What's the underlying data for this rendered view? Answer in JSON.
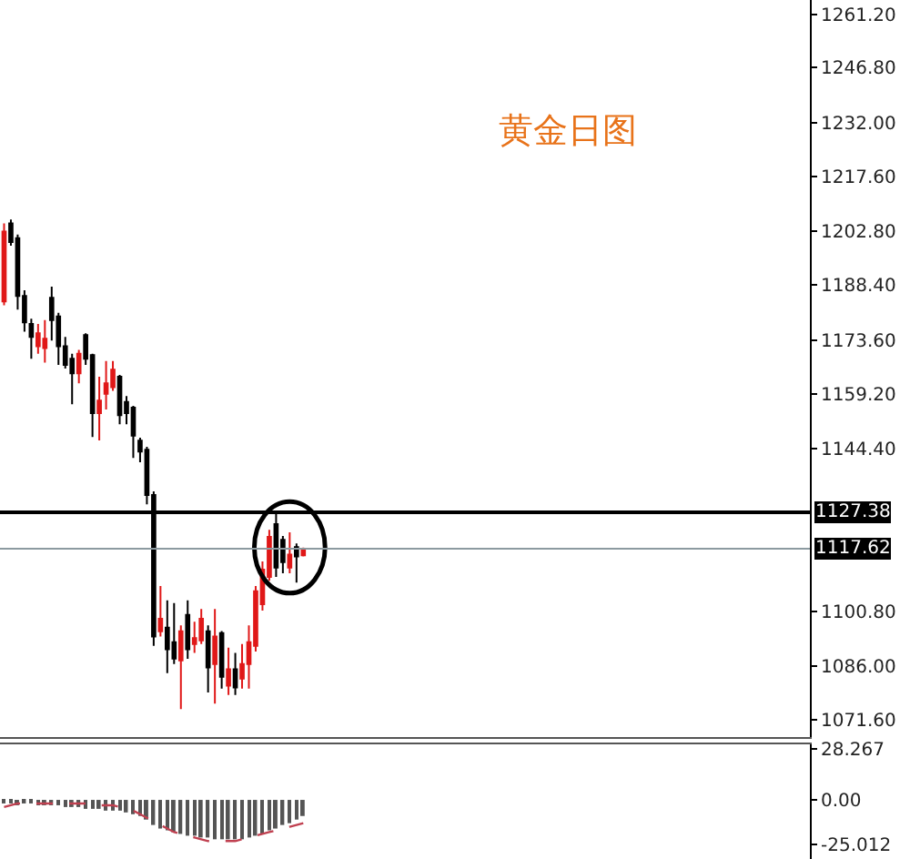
{
  "chart_data": [
    {
      "type": "candlestick",
      "title": "黄金日图",
      "categories": [
        null,
        null,
        null,
        null,
        null,
        null,
        null,
        null,
        null,
        null,
        null,
        null,
        null,
        null,
        null,
        null,
        null,
        null,
        null,
        null,
        null,
        null,
        null,
        null,
        null,
        null,
        null,
        null,
        null,
        null,
        null,
        null,
        null,
        null,
        null,
        null,
        null,
        null,
        null,
        null,
        null,
        null,
        null,
        null,
        null,
        null,
        null,
        null,
        null,
        null,
        null,
        null,
        null,
        null,
        null,
        null,
        null,
        null,
        null,
        null,
        null,
        null,
        null,
        null,
        null,
        null,
        null,
        null,
        null,
        null,
        null,
        null,
        null,
        null,
        null,
        null,
        null,
        null,
        null,
        null,
        null,
        null,
        null,
        null,
        null,
        null,
        null,
        null,
        null,
        null,
        null,
        null,
        null,
        null,
        null,
        null,
        null,
        null,
        null,
        null,
        null,
        null,
        null,
        null,
        null,
        null,
        null,
        null,
        null,
        null,
        null,
        null,
        null,
        null,
        null,
        null,
        null,
        null,
        null
      ],
      "ohlc": [
        [
          1184,
          1205,
          1183,
          1202.8
        ],
        [
          1205,
          1206,
          1199,
          1200
        ],
        [
          1201,
          1202,
          1181.8,
          1185.5
        ],
        [
          1185.5,
          1187,
          1175.9,
          1178.4
        ],
        [
          1178,
          1179.4,
          1168.6,
          1174.5
        ],
        [
          1172,
          1178,
          1170,
          1175.5
        ],
        [
          1171.5,
          1179,
          1167.6,
          1174
        ],
        [
          1185,
          1188,
          1173.5,
          1179
        ],
        [
          1180,
          1181,
          1167,
          1172
        ],
        [
          1172,
          1174.5,
          1166,
          1167
        ],
        [
          1168.6,
          1170,
          1156.4,
          1164.7
        ],
        [
          1164.7,
          1171,
          1162,
          1170
        ],
        [
          1175,
          1175.5,
          1167,
          1168.6
        ],
        [
          1169.6,
          1170,
          1147.6,
          1154
        ],
        [
          1154,
          1163.8,
          1146.7,
          1157.4
        ],
        [
          1159.2,
          1168,
          1155,
          1162
        ],
        [
          1161,
          1168,
          1160,
          1165.7
        ],
        [
          1163.8,
          1164.3,
          1151,
          1153.5
        ],
        [
          1157,
          1158.6,
          1151,
          1154
        ],
        [
          1155.5,
          1156,
          1142,
          1148
        ],
        [
          1146.6,
          1147.4,
          1140.8,
          1143.7
        ],
        [
          1144.2,
          1145,
          1129.5,
          1132
        ],
        [
          1132,
          1133,
          1091.5,
          1094
        ],
        [
          1095.4,
          1107.6,
          1094,
          1098.8
        ],
        [
          1096.4,
          1103.7,
          1084.2,
          1090.6
        ],
        [
          1092.5,
          1103,
          1086.6,
          1088.1
        ],
        [
          1087.6,
          1097,
          1074.5,
          1095.4
        ],
        [
          1099.8,
          1103.7,
          1088,
          1090.6
        ],
        [
          1092,
          1098,
          1089.6,
          1093.6
        ],
        [
          1093,
          1101.4,
          1092,
          1098.8
        ],
        [
          1095.4,
          1097,
          1079,
          1085.7
        ],
        [
          1086.6,
          1101.4,
          1076,
          1094
        ],
        [
          1094.9,
          1095.5,
          1080,
          1083.2
        ],
        [
          1080.8,
          1091,
          1078.3,
          1085.2
        ],
        [
          1085.2,
          1089.6,
          1078.3,
          1080.3
        ],
        [
          1082.7,
          1092,
          1080,
          1086.6
        ],
        [
          1086.6,
          1097,
          1080,
          1092.5
        ],
        [
          1091.5,
          1107.6,
          1090,
          1106.2
        ],
        [
          1102.7,
          1114.2,
          1101,
          1112
        ],
        [
          1110,
          1122.7,
          1109,
          1120.8
        ],
        [
          1124.2,
          1127.4,
          1110,
          1112.5
        ],
        [
          1120,
          1121,
          1111,
          1114
        ],
        [
          1112.5,
          1122,
          1111,
          1116
        ],
        [
          1118,
          1119,
          1108.5,
          1115.5
        ],
        [
          1115.8,
          1117.9,
          1115.5,
          1117.62
        ],
        null,
        null,
        null,
        null,
        null,
        null,
        null,
        null,
        null,
        null,
        null,
        null,
        null,
        null,
        null,
        null,
        null,
        null,
        null,
        null,
        null,
        null,
        null,
        null,
        null,
        null,
        null,
        null,
        null,
        null,
        null,
        null,
        null,
        null,
        null,
        null,
        null,
        null,
        null,
        null,
        null,
        null,
        null,
        null,
        null,
        null,
        null,
        null,
        null,
        null,
        null,
        null,
        null,
        null,
        null,
        null,
        null,
        null,
        null,
        null,
        null,
        null,
        null,
        null,
        null,
        null,
        null,
        null,
        null,
        null,
        null,
        null,
        null,
        null
      ],
      "colors": [
        "#e01818",
        "#000000",
        "#000000",
        "#000000",
        "#000000",
        "#e01818",
        "#e01818",
        "#000000",
        "#000000",
        "#000000",
        "#000000",
        "#e01818",
        "#000000",
        "#000000",
        "#e01818",
        "#e01818",
        "#e01818",
        "#000000",
        "#000000",
        "#000000",
        "#000000",
        "#000000",
        "#000000",
        "#e01818",
        "#000000",
        "#000000",
        "#e01818",
        "#000000",
        "#e01818",
        "#e01818",
        "#000000",
        "#e01818",
        "#000000",
        "#e01818",
        "#000000",
        "#e01818",
        "#e01818",
        "#e01818",
        "#e01818",
        "#e01818",
        "#000000",
        "#000000",
        "#e01818",
        "#000000",
        "#e01818",
        null,
        null,
        null,
        null,
        null,
        null,
        null,
        null,
        null,
        null,
        null,
        null,
        null,
        null,
        null,
        null,
        null,
        null,
        null,
        null,
        null,
        null,
        null,
        null,
        null,
        null,
        null,
        null,
        null,
        null,
        null,
        null,
        null,
        null,
        null,
        null,
        null,
        null,
        null,
        null,
        null,
        null,
        null,
        null,
        null,
        null,
        null,
        null,
        null,
        null,
        null,
        null,
        null,
        null,
        null,
        null,
        null,
        null,
        null,
        null,
        null,
        null,
        null,
        null,
        null,
        null,
        null,
        null,
        null,
        null,
        null,
        null,
        null,
        null
      ],
      "ylim": [
        1067,
        1265
      ],
      "yticks": [
        {
          "value": 1261.2,
          "label": "1261.20"
        },
        {
          "value": 1246.8,
          "label": "1246.80"
        },
        {
          "value": 1232,
          "label": "1232.00"
        },
        {
          "value": 1217.6,
          "label": "1217.60"
        },
        {
          "value": 1202.8,
          "label": "1202.80"
        },
        {
          "value": 1188.4,
          "label": "1188.40"
        },
        {
          "value": 1173.6,
          "label": "1173.60"
        },
        {
          "value": 1159.2,
          "label": "1159.20"
        },
        {
          "value": 1144.4,
          "label": "1144.40"
        },
        {
          "value": 1100.8,
          "label": "1100.80"
        },
        {
          "value": 1086,
          "label": "1086.00"
        },
        {
          "value": 1071.6,
          "label": "1071.60"
        }
      ],
      "ref_lines": [
        {
          "axis": "y",
          "value": 1127.38,
          "label": "1127.38",
          "color": "#000000"
        },
        {
          "axis": "y",
          "value": 1117.62,
          "label": "1117.62",
          "color": "#8c9aa0"
        }
      ],
      "tick_labels": "y"
    },
    {
      "type": "bar",
      "categories": [
        null,
        null,
        null,
        null,
        null,
        null,
        null,
        null,
        null,
        null,
        null,
        null,
        null,
        null,
        null,
        null,
        null,
        null,
        null,
        null,
        null,
        null,
        null,
        null,
        null,
        null,
        null,
        null,
        null,
        null,
        null,
        null,
        null,
        null,
        null,
        null,
        null,
        null,
        null,
        null,
        null,
        null,
        null,
        null,
        null,
        null,
        null,
        null,
        null,
        null,
        null,
        null,
        null,
        null,
        null,
        null,
        null,
        null,
        null,
        null,
        null,
        null,
        null,
        null,
        null,
        null,
        null,
        null,
        null,
        null,
        null,
        null,
        null,
        null,
        null,
        null,
        null,
        null,
        null,
        null,
        null,
        null,
        null,
        null,
        null,
        null,
        null,
        null,
        null,
        null,
        null,
        null,
        null,
        null,
        null,
        null,
        null,
        null,
        null,
        null,
        null,
        null,
        null,
        null,
        null,
        null,
        null,
        null,
        null,
        null,
        null,
        null,
        null,
        null,
        null,
        null,
        null,
        null,
        null
      ],
      "series": [
        {
          "type": "bar",
          "color": "#555555",
          "values": [
            -2,
            -2,
            -3,
            -2,
            -2,
            -3,
            -3,
            -3,
            -3,
            -4,
            -4,
            -4,
            -5,
            -5,
            -5,
            -6,
            -6,
            -6,
            -7,
            -8,
            -9,
            -11,
            -14,
            -16,
            -17,
            -18,
            -19,
            -20,
            -20,
            -21,
            -21,
            -22,
            -22,
            -22,
            -22,
            -22,
            -21,
            -20,
            -19,
            -17,
            -16,
            -14,
            -13,
            -11,
            -9,
            null,
            null,
            null,
            null,
            null,
            null,
            null,
            null,
            null,
            null,
            null,
            null,
            null,
            null,
            null,
            null,
            null,
            null,
            null,
            null,
            null,
            null,
            null,
            null,
            null,
            null,
            null,
            null,
            null,
            null,
            null,
            null,
            null,
            null,
            null,
            null,
            null,
            null,
            null,
            null,
            null,
            null,
            null,
            null,
            null,
            null,
            null,
            null,
            null,
            null,
            null,
            null,
            null,
            null,
            null,
            null,
            null,
            null,
            null,
            null,
            null,
            null,
            null,
            null,
            null,
            null,
            null,
            null,
            null,
            null,
            null,
            null,
            null,
            null
          ]
        },
        {
          "type": "line",
          "color": "#c04050",
          "values": [
            -4,
            -3,
            -2,
            -2,
            -2,
            -2,
            -2,
            -2,
            -2,
            -2,
            -2,
            -2,
            -2,
            -3,
            -3,
            -3,
            -3,
            -4,
            -5,
            -6,
            -8,
            -10,
            -12,
            -14,
            -16,
            -18,
            -19,
            -20,
            -21,
            -22,
            -23,
            -23,
            -23,
            -23,
            -23,
            -22,
            -21,
            -20,
            -19,
            -18,
            -17,
            -16,
            -15,
            -14,
            -13,
            null,
            null,
            null,
            null,
            null,
            null,
            null,
            null,
            null,
            null,
            null,
            null,
            null,
            null,
            null,
            null,
            null,
            null,
            null,
            null,
            null,
            null,
            null,
            null,
            null,
            null,
            null,
            null,
            null,
            null,
            null,
            null,
            null,
            null,
            null,
            null,
            null,
            null,
            null,
            null,
            null,
            null,
            null,
            null,
            null,
            null,
            null,
            null,
            null,
            null,
            null,
            null,
            null,
            null,
            null,
            null,
            null,
            null,
            null,
            null,
            null,
            null,
            null,
            null,
            null,
            null,
            null,
            null,
            null,
            null,
            null,
            null,
            null,
            null
          ]
        }
      ],
      "ylim": [
        -33,
        31
      ],
      "yticks": [
        {
          "value": 28.267,
          "label": "28.267"
        },
        {
          "value": 0,
          "label": "0.00"
        },
        {
          "value": -25.012,
          "label": "-25.012"
        }
      ],
      "line_style": "dashed",
      "tick_labels": "y"
    }
  ]
}
